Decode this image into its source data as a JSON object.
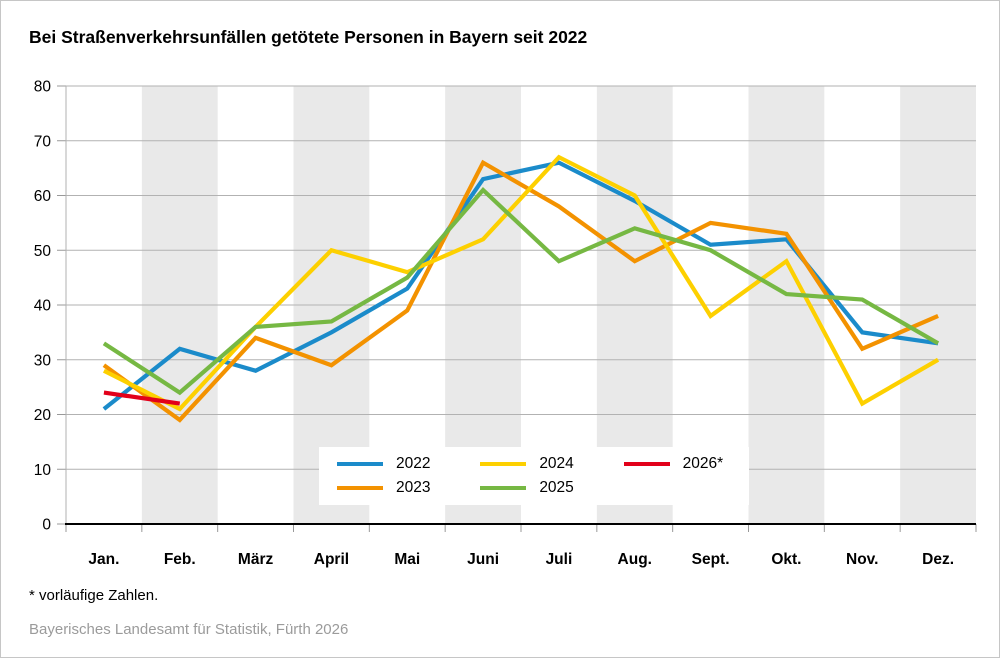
{
  "title": "Bei Straßenverkehrsunfällen getötete Personen in Bayern seit 2022",
  "chart_data": {
    "type": "line",
    "categories": [
      "Jan.",
      "Feb.",
      "März",
      "April",
      "Mai",
      "Juni",
      "Juli",
      "Aug.",
      "Sept.",
      "Okt.",
      "Nov.",
      "Dez."
    ],
    "series": [
      {
        "name": "2022",
        "color": "#1b8bca",
        "values": [
          21,
          32,
          28,
          35,
          43,
          63,
          66,
          59,
          51,
          52,
          35,
          33
        ]
      },
      {
        "name": "2023",
        "color": "#f39200",
        "values": [
          29,
          19,
          34,
          29,
          39,
          66,
          58,
          48,
          55,
          53,
          32,
          38
        ]
      },
      {
        "name": "2024",
        "color": "#fdd000",
        "values": [
          28,
          21,
          36,
          50,
          46,
          52,
          67,
          60,
          38,
          48,
          22,
          30
        ]
      },
      {
        "name": "2025",
        "color": "#76b843",
        "values": [
          33,
          24,
          36,
          37,
          45,
          61,
          48,
          54,
          50,
          42,
          41,
          33
        ]
      },
      {
        "name": "2026*",
        "color": "#e2001a",
        "values": [
          24,
          22
        ]
      }
    ],
    "ylim": [
      0,
      80
    ],
    "ytick_step": 10,
    "yticks": [
      0,
      10,
      20,
      30,
      40,
      50,
      60,
      70,
      80
    ],
    "xlabel": "",
    "ylabel": "",
    "grid": "horizontal",
    "legend_position": "inside-bottom-center",
    "colors": {
      "band": "#e9e9e9",
      "grid": "#b2b2b2",
      "tick": "#999999",
      "axis": "#000000"
    }
  },
  "footnote": "* vorläufige Zahlen.",
  "source": "Bayerisches Landesamt für Statistik, Fürth 2026"
}
